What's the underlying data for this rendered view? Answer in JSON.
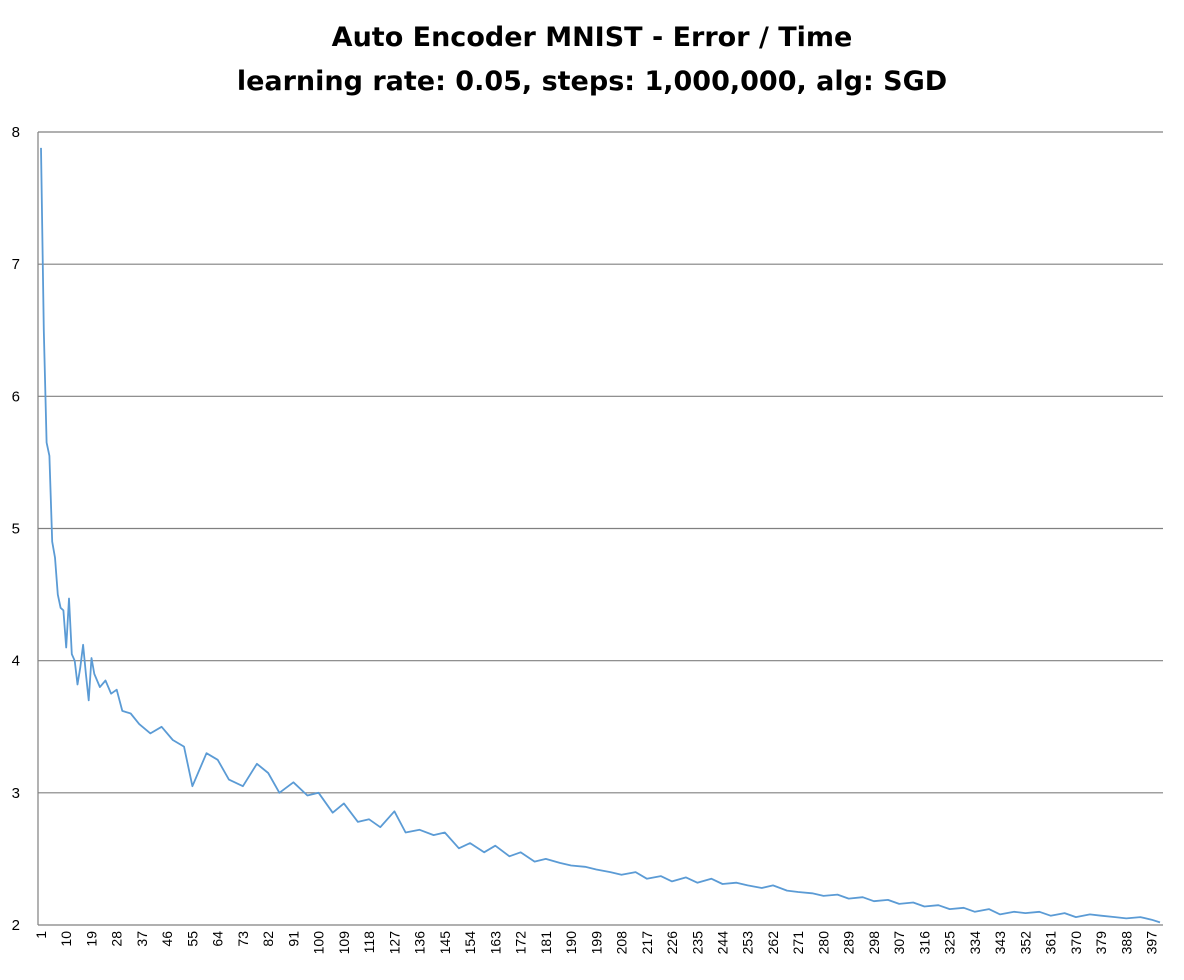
{
  "chart_data": {
    "type": "line",
    "title": "Auto Encoder MNIST - Error / Time",
    "subtitle": "learning rate: 0.05, steps: 1,000,000, alg: SGD",
    "xlabel": "",
    "ylabel": "",
    "ylim": [
      2,
      8
    ],
    "yticks": [
      "2",
      "3",
      "4",
      "5",
      "6",
      "7",
      "8"
    ],
    "xlim": [
      1,
      400
    ],
    "xticks": [
      "1",
      "10",
      "19",
      "28",
      "37",
      "46",
      "55",
      "64",
      "73",
      "82",
      "91",
      "100",
      "109",
      "118",
      "127",
      "136",
      "145",
      "154",
      "163",
      "172",
      "181",
      "190",
      "199",
      "208",
      "217",
      "226",
      "235",
      "244",
      "253",
      "262",
      "271",
      "280",
      "289",
      "298",
      "307",
      "316",
      "325",
      "334",
      "343",
      "352",
      "361",
      "370",
      "379",
      "388",
      "397"
    ],
    "grid": true,
    "legend": "none",
    "colors": {
      "line": "#5B9BD5",
      "grid": "#808080",
      "axis": "#808080"
    },
    "series": [
      {
        "x": [
          1,
          2,
          3,
          4,
          5,
          6,
          7,
          8,
          9,
          10,
          11,
          12,
          13,
          14,
          15,
          16,
          17,
          18,
          19,
          20,
          22,
          24,
          26,
          28,
          30,
          33,
          36,
          40,
          44,
          48,
          52,
          55,
          60,
          64,
          68,
          73,
          78,
          82,
          86,
          91,
          96,
          100,
          105,
          109,
          114,
          118,
          122,
          127,
          131,
          136,
          141,
          145,
          150,
          154,
          159,
          163,
          168,
          172,
          177,
          181,
          186,
          190,
          195,
          199,
          204,
          208,
          213,
          217,
          222,
          226,
          231,
          235,
          240,
          244,
          249,
          253,
          258,
          262,
          267,
          271,
          276,
          280,
          285,
          289,
          294,
          298,
          303,
          307,
          312,
          316,
          321,
          325,
          330,
          334,
          339,
          343,
          348,
          352,
          357,
          361,
          366,
          370,
          375,
          379,
          384,
          388,
          393,
          397,
          400
        ],
        "y": [
          7.88,
          6.5,
          5.65,
          5.55,
          4.9,
          4.78,
          4.5,
          4.4,
          4.38,
          4.1,
          4.47,
          4.05,
          4.0,
          3.82,
          3.95,
          4.12,
          3.9,
          3.7,
          4.02,
          3.9,
          3.8,
          3.85,
          3.75,
          3.78,
          3.62,
          3.6,
          3.52,
          3.45,
          3.5,
          3.4,
          3.35,
          3.05,
          3.3,
          3.25,
          3.1,
          3.05,
          3.22,
          3.15,
          3.0,
          3.08,
          2.98,
          3.0,
          2.85,
          2.92,
          2.78,
          2.8,
          2.74,
          2.86,
          2.7,
          2.72,
          2.68,
          2.7,
          2.58,
          2.62,
          2.55,
          2.6,
          2.52,
          2.55,
          2.48,
          2.5,
          2.47,
          2.45,
          2.44,
          2.42,
          2.4,
          2.38,
          2.4,
          2.35,
          2.37,
          2.33,
          2.36,
          2.32,
          2.35,
          2.31,
          2.32,
          2.3,
          2.28,
          2.3,
          2.26,
          2.25,
          2.24,
          2.22,
          2.23,
          2.2,
          2.21,
          2.18,
          2.19,
          2.16,
          2.17,
          2.14,
          2.15,
          2.12,
          2.13,
          2.1,
          2.12,
          2.08,
          2.1,
          2.09,
          2.1,
          2.07,
          2.09,
          2.06,
          2.08,
          2.07,
          2.06,
          2.05,
          2.06,
          2.04,
          2.02
        ]
      }
    ]
  }
}
